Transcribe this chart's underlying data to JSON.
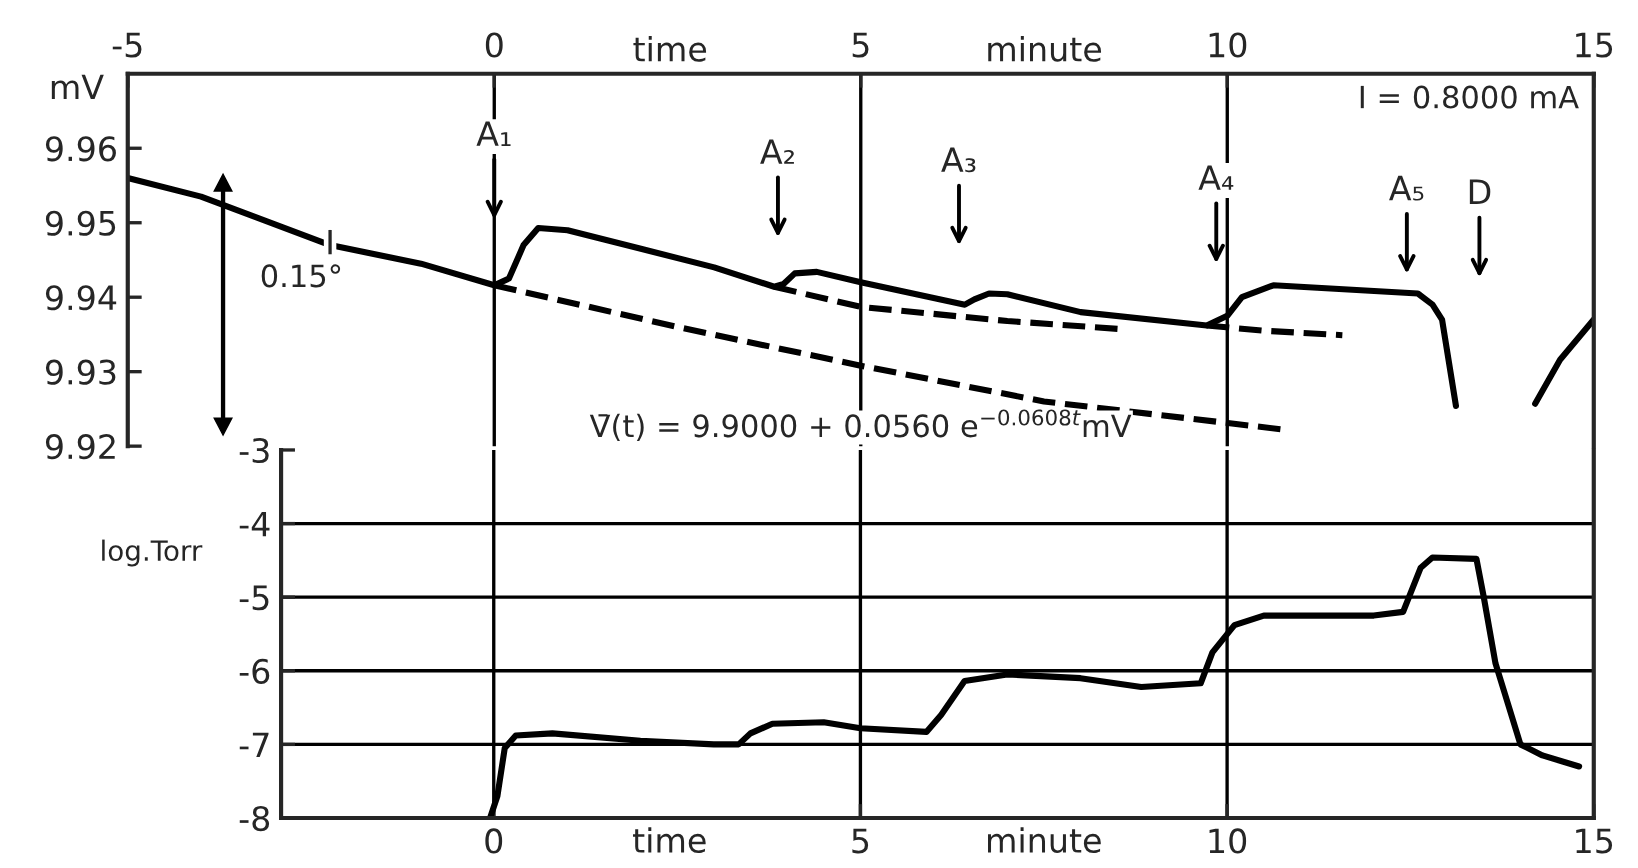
{
  "chart_data": [
    {
      "type": "line",
      "ylabel": "mV",
      "xlim": [
        -5,
        15
      ],
      "xticks": [
        -5,
        0,
        5,
        10,
        15
      ],
      "ylim": [
        9.92,
        9.97
      ],
      "yticks": [
        9.92,
        9.93,
        9.94,
        9.95,
        9.96
      ],
      "grid": "x",
      "legend": false,
      "marker": "none",
      "series": [
        {
          "name": "I",
          "color": "#000000",
          "line_style": "solid",
          "x": [
            -5,
            -4,
            -2.24,
            -1,
            0,
            0.2,
            0.4,
            0.6,
            1.0,
            2,
            3,
            3.82,
            3.95,
            4.1,
            4.4,
            5,
            6.42,
            6.55,
            6.75,
            7.0,
            8,
            9.72,
            10.0,
            10.2,
            10.63,
            12.6,
            12.8,
            12.93,
            13.12,
            13.6,
            14.2,
            14.54,
            15
          ],
          "values": [
            9.956,
            9.9535,
            9.947,
            9.9445,
            9.9416,
            9.9425,
            9.947,
            9.9493,
            9.949,
            9.9465,
            9.944,
            9.9414,
            9.9418,
            9.9432,
            9.9434,
            9.942,
            9.939,
            9.9397,
            9.9405,
            9.9404,
            9.938,
            9.9362,
            9.9375,
            9.94,
            9.9416,
            9.9405,
            9.939,
            9.937,
            9.9254,
            null,
            9.9257,
            9.9316,
            9.937
          ]
        },
        {
          "color": "#000000",
          "line_style": "dashed",
          "x": [
            0,
            2.5,
            5,
            7.5,
            10.79
          ],
          "values": [
            9.9416,
            9.936,
            9.9308,
            9.926,
            9.9222
          ]
        },
        {
          "color": "#000000",
          "line_style": "dashed",
          "x": [
            3.82,
            5,
            7,
            8.57
          ],
          "values": [
            9.9414,
            9.9387,
            9.9368,
            9.9357
          ]
        },
        {
          "color": "#000000",
          "line_style": "dashed",
          "x": [
            9.72,
            10.5,
            11.57
          ],
          "values": [
            9.9362,
            9.9355,
            9.9349
          ]
        }
      ],
      "annotations": [
        "time",
        "minute",
        "I = 0.8000 mA",
        "0.15°",
        "V̄(t) = 9.9000 + 0.0560 e$^{−0.0608t}$mV",
        "A₁",
        "A₂",
        "A₃",
        "A₄",
        "A₅",
        "D"
      ]
    },
    {
      "type": "line",
      "ylabel": "log.Torr",
      "xlim": [
        -2.9,
        15
      ],
      "xticks": [
        0,
        5,
        10,
        15
      ],
      "ylim": [
        -8,
        -3
      ],
      "yticks": [
        -8,
        -7,
        -6,
        -5,
        -4,
        -3
      ],
      "grid": true,
      "legend": false,
      "marker": "none",
      "series": [
        {
          "color": "#000000",
          "line_style": "solid",
          "x": [
            -0.05,
            0.05,
            0.15,
            0.3,
            0.8,
            2,
            3,
            3.34,
            3.5,
            3.8,
            4.5,
            5,
            5.9,
            6.1,
            6.42,
            7.0,
            8,
            8.83,
            9.64,
            9.8,
            10.1,
            10.5,
            12,
            12.4,
            12.64,
            12.8,
            13.4,
            13.5,
            13.66,
            14.0,
            14.3,
            14.8
          ],
          "values": [
            -8,
            -7.7,
            -7.05,
            -6.88,
            -6.85,
            -6.95,
            -7.0,
            -7.0,
            -6.85,
            -6.72,
            -6.7,
            -6.78,
            -6.83,
            -6.6,
            -6.14,
            -6.05,
            -6.1,
            -6.22,
            -6.17,
            -5.75,
            -5.38,
            -5.25,
            -5.25,
            -5.2,
            -4.6,
            -4.46,
            -4.48,
            -5.0,
            -5.9,
            -7.0,
            -7.15,
            -7.3
          ]
        }
      ],
      "annotations": [
        "time",
        "minute"
      ]
    }
  ]
}
